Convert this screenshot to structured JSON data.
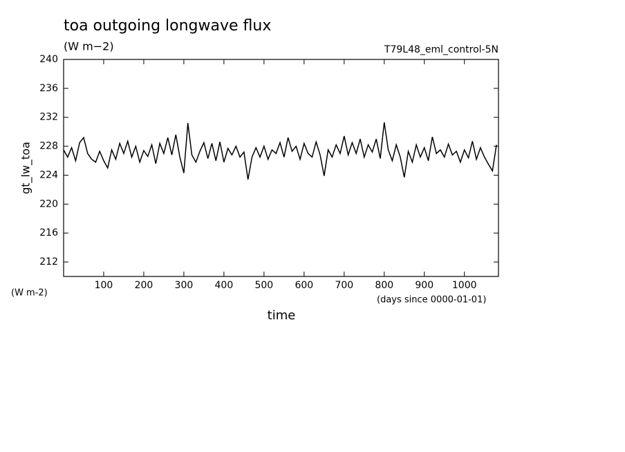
{
  "chart_data": {
    "type": "line",
    "title": "toa outgoing longwave flux",
    "subtitle": "(W m−2)",
    "run_label": "T79L48_eml_control-5N",
    "y_label": "gt_lw_toa",
    "y_unit_label": "(W m-2)",
    "x_unit_label": "(days since 0000-01-01)",
    "x_label": "time",
    "xlim": [
      0,
      1085
    ],
    "ylim": [
      210,
      240
    ],
    "xticks": [
      100,
      200,
      300,
      400,
      500,
      600,
      700,
      800,
      900,
      1000
    ],
    "yticks": [
      212,
      216,
      220,
      224,
      228,
      232,
      236,
      240
    ],
    "x": [
      0,
      10,
      20,
      30,
      40,
      50,
      60,
      70,
      80,
      90,
      100,
      110,
      120,
      130,
      140,
      150,
      160,
      170,
      180,
      190,
      200,
      210,
      220,
      230,
      240,
      250,
      260,
      270,
      280,
      290,
      300,
      310,
      320,
      330,
      340,
      350,
      360,
      370,
      380,
      390,
      400,
      410,
      420,
      430,
      440,
      450,
      460,
      470,
      480,
      490,
      500,
      510,
      520,
      530,
      540,
      550,
      560,
      570,
      580,
      590,
      600,
      610,
      620,
      630,
      640,
      650,
      660,
      670,
      680,
      690,
      700,
      710,
      720,
      730,
      740,
      750,
      760,
      770,
      780,
      790,
      800,
      810,
      820,
      830,
      840,
      850,
      860,
      870,
      880,
      890,
      900,
      910,
      920,
      930,
      940,
      950,
      960,
      970,
      980,
      990,
      1000,
      1010,
      1020,
      1030,
      1040,
      1050,
      1060,
      1070,
      1080
    ],
    "series": [
      {
        "color": "#000000",
        "values": [
          227.5,
          226.5,
          227.8,
          226,
          228.5,
          229.2,
          227,
          226.2,
          225.8,
          227.3,
          226,
          225,
          227.5,
          226.2,
          228.4,
          227,
          228.7,
          226.5,
          228,
          225.8,
          227.4,
          226.6,
          228.2,
          225.6,
          228.4,
          227,
          229.2,
          226.8,
          229.6,
          226.5,
          224.3,
          231.2,
          226.8,
          225.8,
          227.3,
          228.5,
          226.3,
          228.4,
          226,
          228.6,
          225.8,
          227.7,
          226.8,
          228,
          226.5,
          227.2,
          223.4,
          226.5,
          227.8,
          226.5,
          228,
          226.2,
          227.5,
          227,
          228.5,
          226.5,
          229.2,
          227.3,
          228,
          226.2,
          228.4,
          227,
          226.5,
          228.6,
          226.8,
          223.9,
          227.5,
          226.5,
          228.2,
          227,
          229.4,
          226.8,
          228.5,
          227,
          229,
          226.5,
          228.2,
          227.2,
          229,
          226.3,
          231.3,
          227.5,
          226,
          228.2,
          226.5,
          223.7,
          227.3,
          225.8,
          228.2,
          226.5,
          227.8,
          226,
          229.3,
          227,
          227.5,
          226.5,
          228.3,
          226.8,
          227.3,
          225.8,
          227.5,
          226.4,
          228.7,
          226.2,
          227.8,
          226.5,
          225.5,
          224.6,
          228.2
        ]
      }
    ]
  }
}
